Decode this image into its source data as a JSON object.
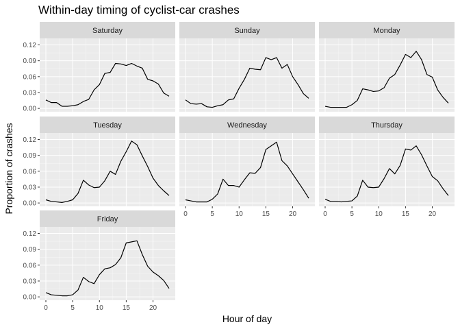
{
  "chart_data": {
    "type": "line",
    "title": "Within-day timing of cyclist-car crashes",
    "xlabel": "Hour of day",
    "ylabel": "Proportion of crashes",
    "xlim": [
      -1.15,
      24.15
    ],
    "ylim": [
      -0.0063,
      0.1323
    ],
    "x_ticks": [
      0,
      5,
      10,
      15,
      20
    ],
    "y_ticks": [
      "0.00",
      "0.03",
      "0.06",
      "0.09",
      "0.12"
    ],
    "grid": true,
    "x": [
      0,
      1,
      2,
      3,
      4,
      5,
      6,
      7,
      8,
      9,
      10,
      11,
      12,
      13,
      14,
      15,
      16,
      17,
      18,
      19,
      20,
      21,
      22,
      23
    ],
    "panels": [
      {
        "name": "Saturday",
        "values": [
          0.016,
          0.011,
          0.011,
          0.004,
          0.004,
          0.005,
          0.007,
          0.013,
          0.017,
          0.035,
          0.045,
          0.066,
          0.068,
          0.085,
          0.084,
          0.081,
          0.085,
          0.08,
          0.076,
          0.055,
          0.052,
          0.046,
          0.029,
          0.023
        ]
      },
      {
        "name": "Sunday",
        "values": [
          0.016,
          0.009,
          0.008,
          0.009,
          0.003,
          0.002,
          0.005,
          0.007,
          0.016,
          0.018,
          0.038,
          0.055,
          0.076,
          0.074,
          0.073,
          0.096,
          0.092,
          0.096,
          0.076,
          0.083,
          0.06,
          0.045,
          0.028,
          0.019
        ]
      },
      {
        "name": "Monday",
        "values": [
          0.004,
          0.002,
          0.002,
          0.002,
          0.002,
          0.007,
          0.015,
          0.037,
          0.035,
          0.032,
          0.033,
          0.039,
          0.057,
          0.064,
          0.082,
          0.102,
          0.096,
          0.108,
          0.092,
          0.064,
          0.059,
          0.035,
          0.021,
          0.01
        ]
      },
      {
        "name": "Tuesday",
        "values": [
          0.006,
          0.003,
          0.002,
          0.001,
          0.003,
          0.006,
          0.018,
          0.043,
          0.034,
          0.029,
          0.03,
          0.042,
          0.06,
          0.054,
          0.079,
          0.097,
          0.117,
          0.11,
          0.089,
          0.069,
          0.047,
          0.033,
          0.023,
          0.014
        ]
      },
      {
        "name": "Wednesday",
        "values": [
          0.006,
          0.004,
          0.002,
          0.002,
          0.002,
          0.007,
          0.017,
          0.045,
          0.033,
          0.033,
          0.03,
          0.044,
          0.057,
          0.056,
          0.067,
          0.101,
          0.108,
          0.115,
          0.08,
          0.07,
          0.055,
          0.04,
          0.025,
          0.009
        ]
      },
      {
        "name": "Thursday",
        "values": [
          0.007,
          0.003,
          0.003,
          0.002,
          0.003,
          0.004,
          0.013,
          0.043,
          0.03,
          0.029,
          0.03,
          0.046,
          0.065,
          0.055,
          0.071,
          0.102,
          0.1,
          0.108,
          0.091,
          0.07,
          0.05,
          0.042,
          0.027,
          0.014
        ]
      },
      {
        "name": "Friday",
        "values": [
          0.008,
          0.004,
          0.003,
          0.002,
          0.002,
          0.004,
          0.013,
          0.037,
          0.029,
          0.025,
          0.042,
          0.053,
          0.055,
          0.061,
          0.074,
          0.102,
          0.104,
          0.106,
          0.08,
          0.058,
          0.047,
          0.04,
          0.031,
          0.016
        ]
      }
    ],
    "colors": {
      "panel_bg": "#ebebeb",
      "grid_major": "#ffffff",
      "strip_bg": "#d9d9d9",
      "line": "#000000",
      "tick_label": "#4d4d4d"
    }
  }
}
